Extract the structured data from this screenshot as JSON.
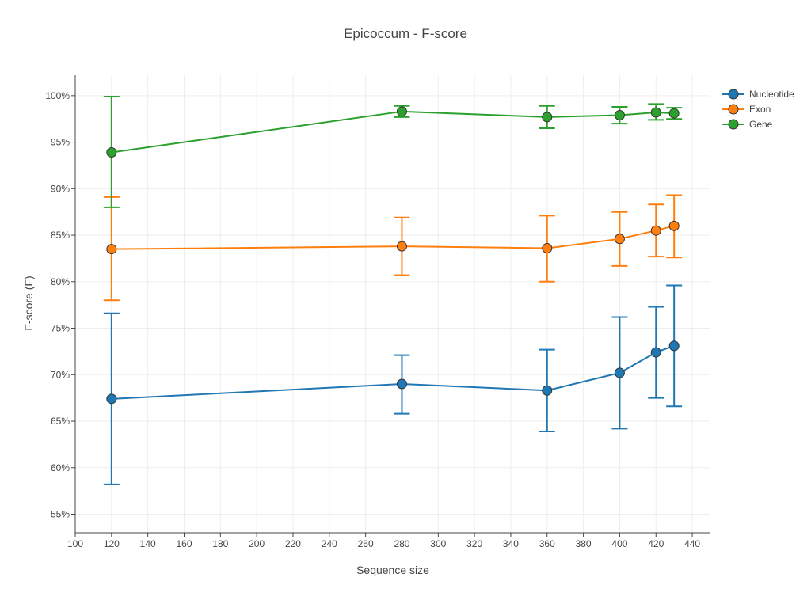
{
  "chart_data": {
    "type": "line",
    "title": "Epicoccum - F-score",
    "xlabel": "Sequence size",
    "ylabel": "F-score (F)",
    "xlim": [
      100,
      450
    ],
    "ylim": [
      0.53,
      1.022
    ],
    "x_ticks": [
      100,
      120,
      140,
      160,
      180,
      200,
      220,
      240,
      260,
      280,
      300,
      320,
      340,
      360,
      380,
      400,
      420,
      440
    ],
    "y_ticks": [
      0.55,
      0.6,
      0.65,
      0.7,
      0.75,
      0.8,
      0.85,
      0.9,
      0.95,
      1.0
    ],
    "y_tick_labels": [
      "55%",
      "60%",
      "65%",
      "70%",
      "75%",
      "80%",
      "85%",
      "90%",
      "95%",
      "100%"
    ],
    "grid": true,
    "legend_position": "top-right",
    "x": [
      120,
      280,
      360,
      400,
      420,
      430
    ],
    "series": [
      {
        "name": "Nucleotide",
        "color": "#1f77b4",
        "values": [
          0.674,
          0.69,
          0.683,
          0.702,
          0.724,
          0.731
        ],
        "error_low": [
          0.582,
          0.658,
          0.639,
          0.642,
          0.675,
          0.666
        ],
        "error_high": [
          0.766,
          0.721,
          0.727,
          0.762,
          0.773,
          0.796
        ]
      },
      {
        "name": "Exon",
        "color": "#ff7f0e",
        "values": [
          0.835,
          0.838,
          0.836,
          0.846,
          0.855,
          0.86
        ],
        "error_low": [
          0.78,
          0.807,
          0.8,
          0.817,
          0.827,
          0.826
        ],
        "error_high": [
          0.891,
          0.869,
          0.871,
          0.875,
          0.883,
          0.893
        ]
      },
      {
        "name": "Gene",
        "color": "#2ca02c",
        "values": [
          0.939,
          0.983,
          0.977,
          0.979,
          0.982,
          0.981
        ],
        "error_low": [
          0.88,
          0.977,
          0.965,
          0.97,
          0.974,
          0.975
        ],
        "error_high": [
          0.999,
          0.989,
          0.989,
          0.988,
          0.991,
          0.987
        ]
      }
    ]
  }
}
